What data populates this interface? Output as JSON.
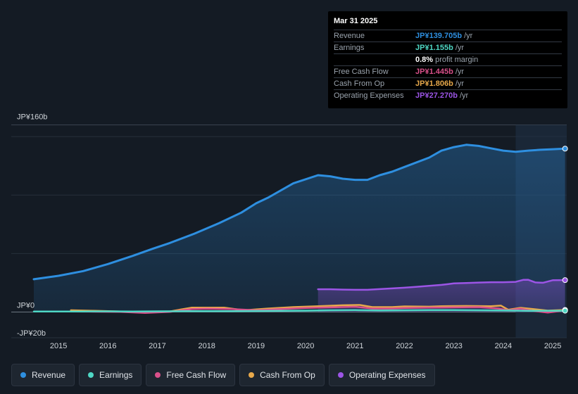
{
  "tooltip": {
    "date": "Mar 31 2025",
    "rows": [
      {
        "label": "Revenue",
        "value": "JP¥139.705b",
        "unit": "/yr",
        "color": "#2e8fe0"
      },
      {
        "label": "Earnings",
        "value": "JP¥1.155b",
        "unit": "/yr",
        "color": "#4fd8c5"
      },
      {
        "label": "",
        "value": "0.8%",
        "unit": "profit margin",
        "color": "#ffffff"
      },
      {
        "label": "Free Cash Flow",
        "value": "JP¥1.445b",
        "unit": "/yr",
        "color": "#d9508a"
      },
      {
        "label": "Cash From Op",
        "value": "JP¥1.806b",
        "unit": "/yr",
        "color": "#e8a94b"
      },
      {
        "label": "Operating Expenses",
        "value": "JP¥27.270b",
        "unit": "/yr",
        "color": "#9c55e6"
      }
    ]
  },
  "legend": [
    {
      "label": "Revenue",
      "color": "#2e8fe0"
    },
    {
      "label": "Earnings",
      "color": "#4fd8c5"
    },
    {
      "label": "Free Cash Flow",
      "color": "#d9508a"
    },
    {
      "label": "Cash From Op",
      "color": "#e8a94b"
    },
    {
      "label": "Operating Expenses",
      "color": "#9c55e6"
    }
  ],
  "chart_data": {
    "type": "area",
    "title": "",
    "xlabel": "",
    "ylabel": "",
    "ylim": [
      -20,
      160
    ],
    "y_tick_labels": [
      {
        "value": 160,
        "label": "JP¥160b"
      },
      {
        "value": 0,
        "label": "JP¥0"
      },
      {
        "value": -20,
        "label": "-JP¥20b"
      }
    ],
    "x_ticks": [
      2015,
      2016,
      2017,
      2018,
      2019,
      2020,
      2021,
      2022,
      2023,
      2024,
      2025
    ],
    "xlim": [
      2014.5,
      2025.25
    ],
    "forecast_start": 2024.25,
    "series": [
      {
        "name": "Revenue",
        "color": "#2e8fe0",
        "fill": true,
        "x": [
          2014.5,
          2015.0,
          2015.5,
          2016.0,
          2016.5,
          2016.9,
          2017.25,
          2017.75,
          2018.25,
          2018.7,
          2019.0,
          2019.25,
          2019.75,
          2020.25,
          2020.5,
          2020.75,
          2021.0,
          2021.25,
          2021.5,
          2021.75,
          2022.0,
          2022.5,
          2022.75,
          2023.0,
          2023.25,
          2023.5,
          2023.75,
          2024.0,
          2024.25,
          2024.5,
          2024.75,
          2025.0,
          2025.25
        ],
        "values": [
          28,
          31,
          35,
          41,
          48,
          54,
          59,
          67,
          76,
          85,
          93,
          98,
          110,
          117,
          116,
          114,
          113,
          113,
          117,
          120,
          124,
          132,
          138,
          141,
          143,
          142,
          140,
          138,
          137,
          138,
          138.7,
          139.2,
          139.7
        ]
      },
      {
        "name": "Operating Expenses",
        "color": "#9c55e6",
        "fill": true,
        "x": [
          2020.25,
          2020.5,
          2020.75,
          2021.0,
          2021.25,
          2021.5,
          2021.75,
          2022.0,
          2022.25,
          2022.5,
          2022.75,
          2023.0,
          2023.25,
          2023.5,
          2023.75,
          2024.0,
          2024.25,
          2024.4,
          2024.5,
          2024.65,
          2024.8,
          2025.0,
          2025.25
        ],
        "values": [
          19.5,
          19.5,
          19.2,
          19.0,
          19.0,
          19.6,
          20.2,
          20.8,
          21.6,
          22.4,
          23.2,
          24.5,
          24.8,
          25.2,
          25.5,
          25.5,
          25.8,
          27.5,
          27.6,
          25.3,
          25.0,
          27.2,
          27.3
        ]
      },
      {
        "name": "Cash From Op",
        "color": "#e8a94b",
        "fill": false,
        "x": [
          2015.25,
          2015.75,
          2016.25,
          2016.75,
          2017.25,
          2017.7,
          2018.0,
          2018.35,
          2018.75,
          2019.25,
          2019.75,
          2020.25,
          2020.75,
          2021.1,
          2021.35,
          2021.75,
          2022.0,
          2022.5,
          2022.75,
          2023.25,
          2023.75,
          2023.95,
          2024.1,
          2024.35,
          2024.6,
          2024.9,
          2025.25
        ],
        "values": [
          1.5,
          1.0,
          0.5,
          -0.5,
          0.5,
          3.8,
          3.8,
          3.8,
          1.5,
          3.0,
          4.2,
          5.0,
          5.8,
          6.0,
          4.2,
          4.2,
          4.8,
          4.6,
          5.0,
          5.2,
          5.0,
          5.5,
          2.0,
          3.6,
          2.6,
          1.2,
          1.8
        ]
      },
      {
        "name": "Free Cash Flow",
        "color": "#d9508a",
        "fill": false,
        "x": [
          2015.25,
          2015.75,
          2016.25,
          2016.75,
          2017.25,
          2017.7,
          2018.0,
          2018.5,
          2019.0,
          2019.5,
          2020.0,
          2020.5,
          2021.0,
          2021.35,
          2021.75,
          2022.0,
          2022.5,
          2023.0,
          2023.5,
          2023.9,
          2024.1,
          2024.35,
          2024.6,
          2024.9,
          2025.25
        ],
        "values": [
          0.5,
          0.3,
          0.2,
          -0.8,
          0.2,
          2.5,
          2.8,
          2.5,
          1.5,
          2.5,
          3.5,
          4.0,
          4.5,
          3.0,
          3.0,
          3.5,
          3.8,
          4.0,
          4.2,
          3.0,
          1.5,
          2.8,
          1.0,
          -0.5,
          1.4
        ]
      },
      {
        "name": "Earnings",
        "color": "#4fd8c5",
        "fill": false,
        "x": [
          2014.5,
          2015.0,
          2015.5,
          2016.0,
          2016.5,
          2017.0,
          2017.5,
          2018.0,
          2018.5,
          2019.0,
          2019.5,
          2020.0,
          2020.5,
          2021.0,
          2021.5,
          2022.0,
          2022.5,
          2023.0,
          2023.5,
          2024.0,
          2024.5,
          2025.0,
          2025.25
        ],
        "values": [
          0.4,
          0.5,
          0.5,
          0.6,
          0.5,
          0.6,
          0.7,
          0.8,
          0.7,
          0.9,
          1.0,
          1.2,
          1.5,
          1.6,
          1.4,
          1.5,
          1.6,
          1.6,
          1.5,
          1.3,
          1.0,
          1.1,
          1.155
        ]
      }
    ]
  }
}
